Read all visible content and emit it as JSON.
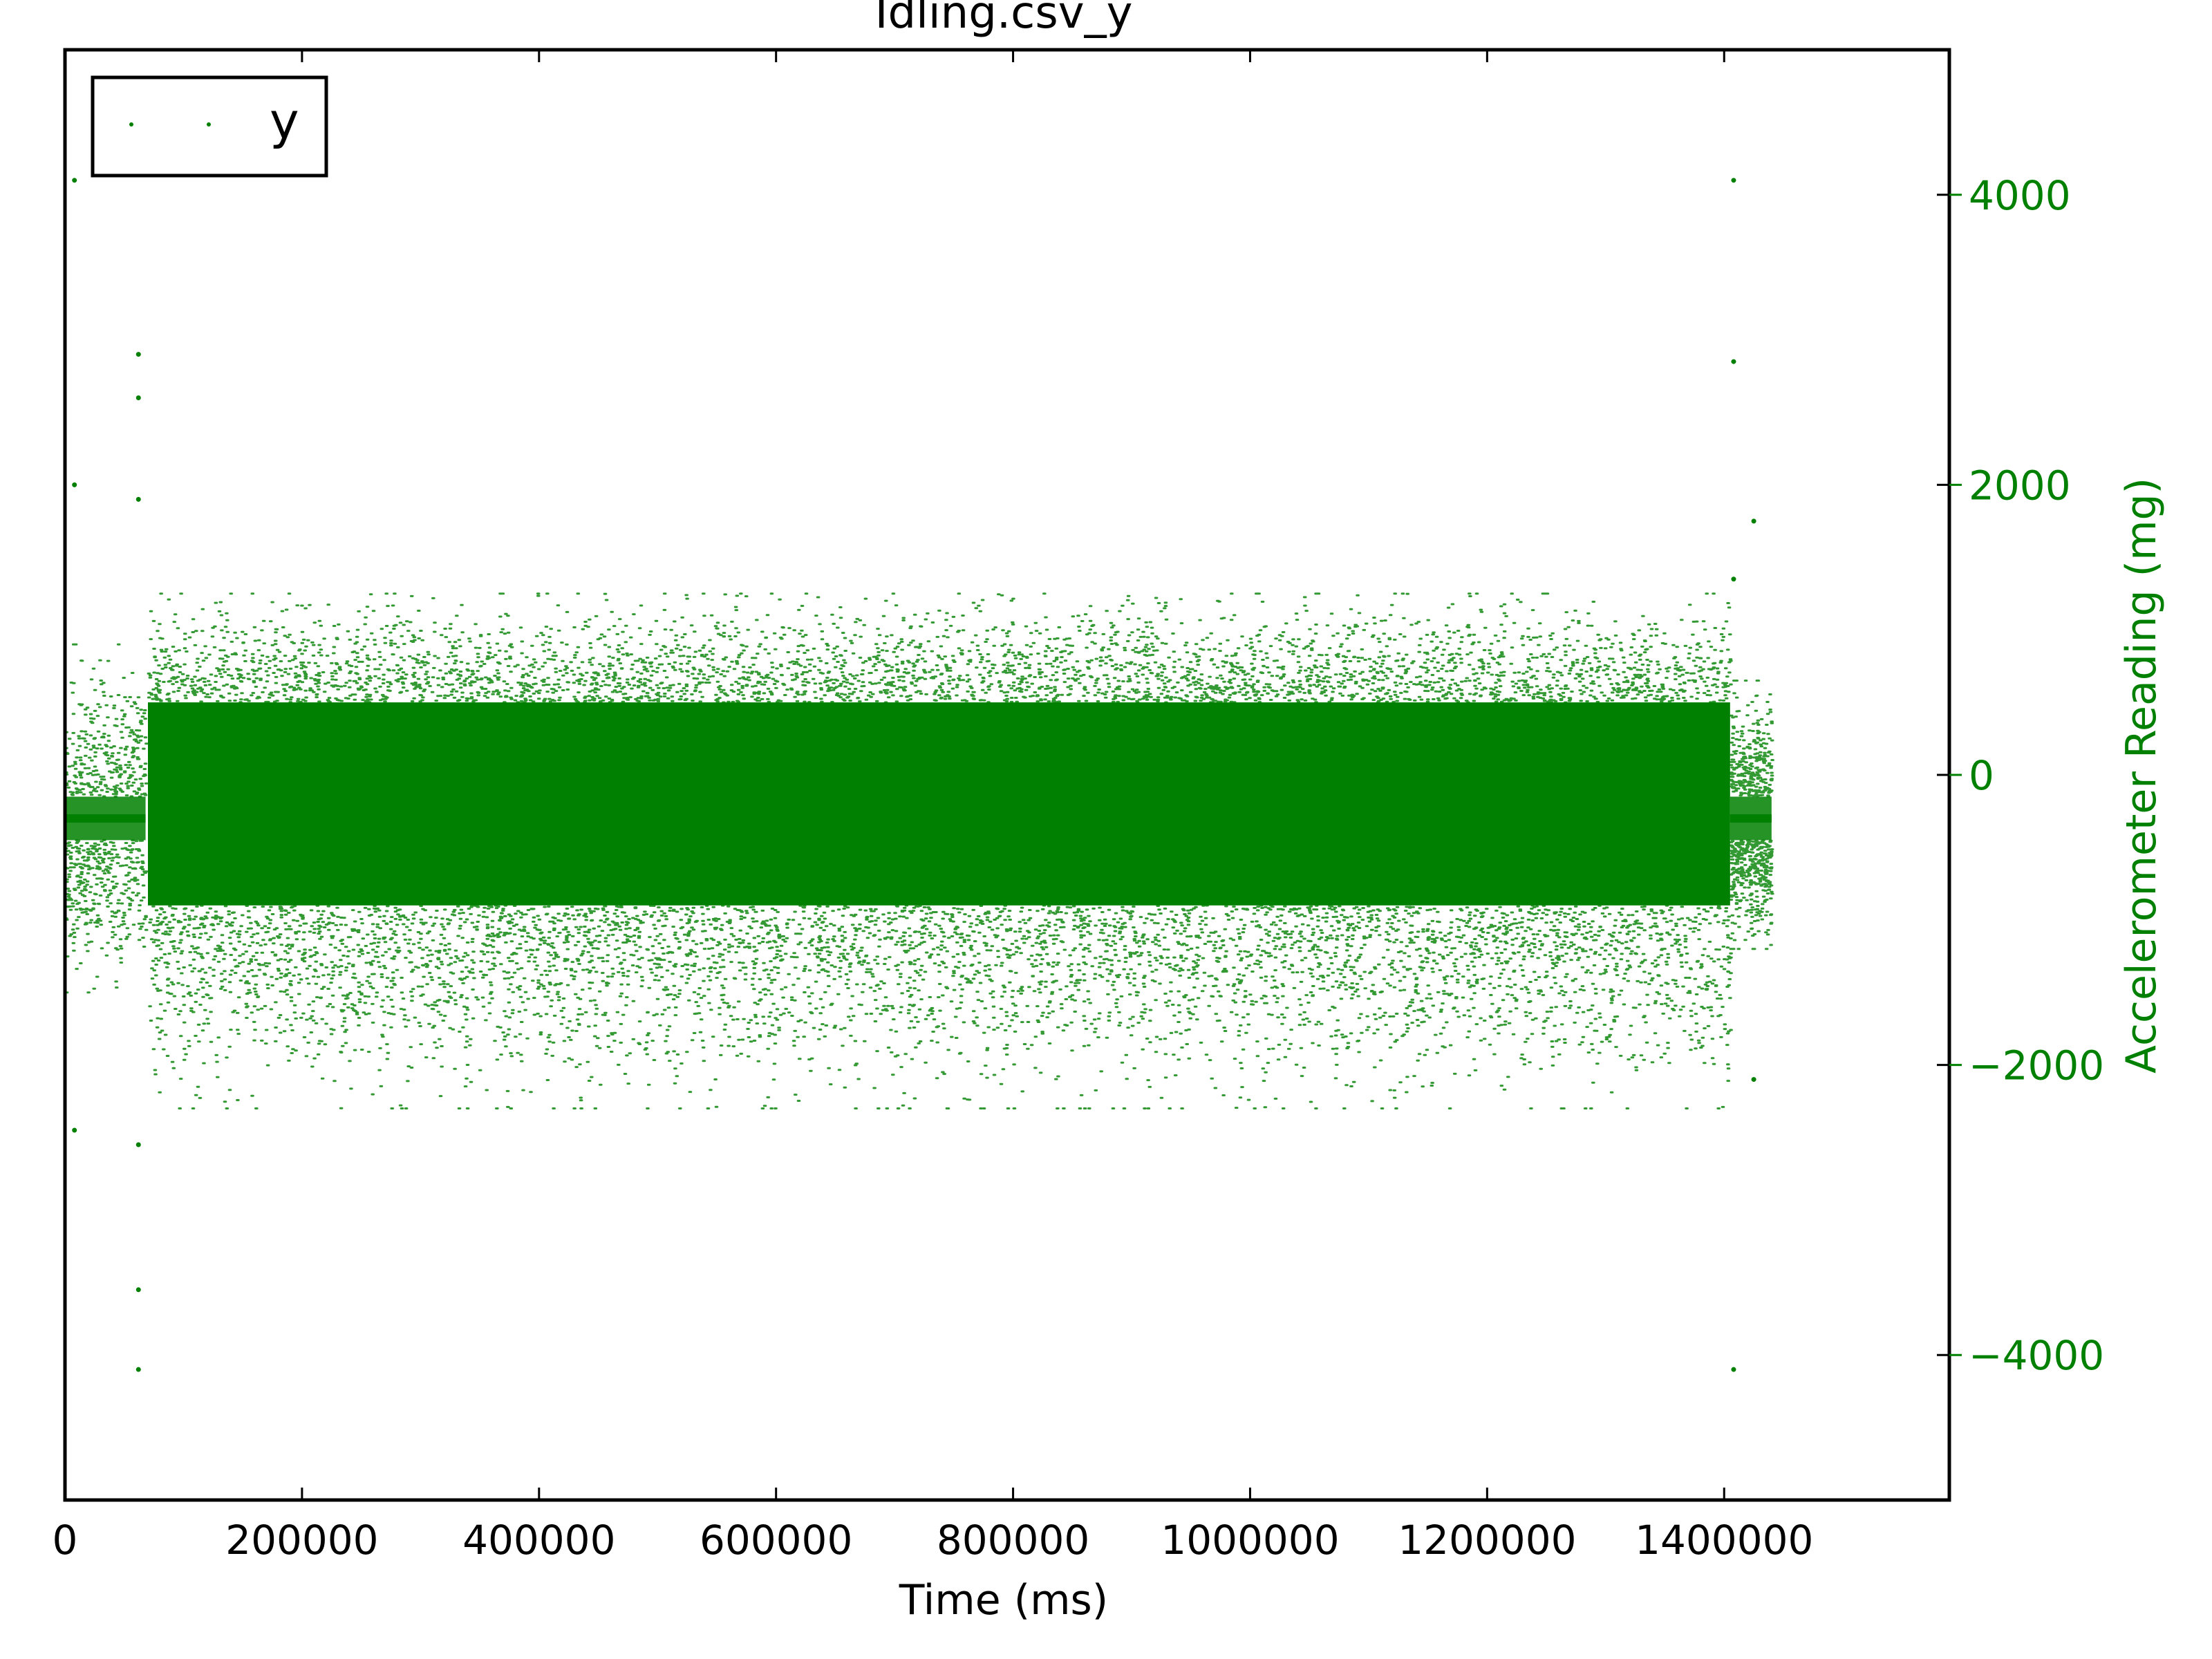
{
  "chart_data": {
    "type": "scatter",
    "title": "Idling.csv_y",
    "xlabel": "Time (ms)",
    "ylabel": "Accelerometer Reading (mg)",
    "ylabel_side": "right",
    "xlim": [
      0,
      1590000
    ],
    "ylim": [
      -5000,
      5000
    ],
    "xticks": [
      0,
      200000,
      400000,
      600000,
      800000,
      1000000,
      1200000,
      1400000
    ],
    "xtick_labels": [
      "0",
      "200000",
      "400000",
      "600000",
      "800000",
      "1000000",
      "1200000",
      "1400000"
    ],
    "yticks": [
      4000,
      2000,
      0,
      -2000,
      -4000
    ],
    "ytick_labels": [
      "4000",
      "2000",
      "0",
      "−2000",
      "−4000"
    ],
    "grid": false,
    "legend": {
      "position": "top-left",
      "entries": [
        "y"
      ]
    },
    "series": [
      {
        "name": "y",
        "color": "#008000",
        "marker": "dot",
        "segments": [
          {
            "x_start": 0,
            "x_end": 68000,
            "center": -300,
            "core_min": -450,
            "core_max": -150,
            "outer_min": -1500,
            "outer_max": 900,
            "note_level": "sparse"
          },
          {
            "x_start": 70000,
            "x_end": 1405000,
            "center": -300,
            "core_min": -900,
            "core_max": 500,
            "outer_min": -2300,
            "outer_max": 1250,
            "note_level": "dense"
          },
          {
            "x_start": 1405000,
            "x_end": 1440000,
            "center": -300,
            "core_min": -450,
            "core_max": -150,
            "outer_min": -1200,
            "outer_max": 650,
            "note_level": "sparse"
          }
        ],
        "outliers": [
          {
            "x": 8000,
            "y": 4100
          },
          {
            "x": 8000,
            "y": 2000
          },
          {
            "x": 8000,
            "y": -2450
          },
          {
            "x": 62000,
            "y": 2900
          },
          {
            "x": 62000,
            "y": 2600
          },
          {
            "x": 62000,
            "y": 1900
          },
          {
            "x": 62000,
            "y": -2550
          },
          {
            "x": 62000,
            "y": -3550
          },
          {
            "x": 62000,
            "y": -4100
          },
          {
            "x": 1408000,
            "y": 4100
          },
          {
            "x": 1408000,
            "y": 2850
          },
          {
            "x": 1408000,
            "y": 1350
          },
          {
            "x": 1408000,
            "y": -4100
          },
          {
            "x": 1425000,
            "y": 1750
          },
          {
            "x": 1425000,
            "y": -2100
          }
        ]
      }
    ]
  }
}
